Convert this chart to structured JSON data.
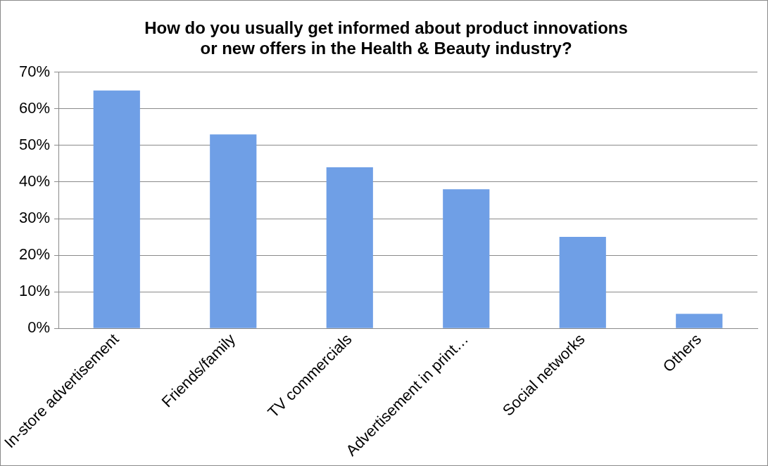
{
  "chart_data": {
    "type": "bar",
    "title": "How do you usually get informed about product innovations\nor new offers in the Health & Beauty industry?",
    "categories": [
      "In-store advertisement",
      "Friends/family",
      "TV commercials",
      "Advertisement in print…",
      "Social networks",
      "Others"
    ],
    "values": [
      65,
      53,
      44,
      38,
      25,
      4
    ],
    "color": "#6f9fe6",
    "ylim": [
      0,
      70
    ],
    "yticks": [
      {
        "value": 0,
        "label": "0%"
      },
      {
        "value": 10,
        "label": "10%"
      },
      {
        "value": 20,
        "label": "20%"
      },
      {
        "value": 30,
        "label": "30%"
      },
      {
        "value": 40,
        "label": "40%"
      },
      {
        "value": 50,
        "label": "50%"
      },
      {
        "value": 60,
        "label": "60%"
      },
      {
        "value": 70,
        "label": "70%"
      }
    ],
    "grid": "y"
  }
}
